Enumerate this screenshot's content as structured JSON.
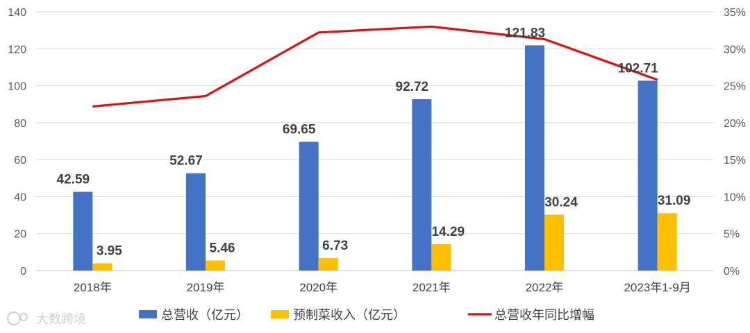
{
  "chart_data": {
    "type": "bar",
    "categories": [
      "2018年",
      "2019年",
      "2020年",
      "2021年",
      "2022年",
      "2023年1-9月"
    ],
    "series": [
      {
        "name": "总营收（亿元）",
        "type": "bar",
        "axis": "left",
        "color": "#4472C4",
        "values": [
          42.59,
          52.67,
          69.65,
          92.72,
          121.83,
          102.71
        ],
        "labels": [
          "42.59",
          "52.67",
          "69.65",
          "92.72",
          "121.83",
          "102.71"
        ]
      },
      {
        "name": "预制菜收入（亿元）",
        "type": "bar",
        "axis": "left",
        "color": "#FFC000",
        "values": [
          3.95,
          5.46,
          6.73,
          14.29,
          30.24,
          31.09
        ],
        "labels": [
          "3.95",
          "5.46",
          "6.73",
          "14.29",
          "30.24",
          "31.09"
        ]
      },
      {
        "name": "总营收年同比增幅",
        "type": "line",
        "axis": "right",
        "color": "#E01010",
        "values": [
          22.2,
          23.6,
          32.2,
          33.0,
          31.3,
          25.8
        ]
      }
    ],
    "y_left": {
      "min": 0,
      "max": 140,
      "ticks": [
        "0",
        "20",
        "40",
        "60",
        "80",
        "100",
        "120",
        "140"
      ]
    },
    "y_right": {
      "min": 0,
      "max": 35,
      "ticks": [
        "0%",
        "5%",
        "10%",
        "15%",
        "20%",
        "25%",
        "30%",
        "35%"
      ]
    },
    "grid": true,
    "legend": "bottom"
  },
  "watermark": {
    "text": "大数跨境",
    "icon": "logo-icon"
  }
}
